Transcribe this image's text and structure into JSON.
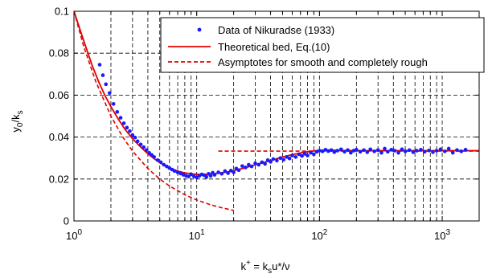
{
  "chart_data": {
    "type": "scatter",
    "xscale": "log",
    "xlim": [
      1,
      2000
    ],
    "ylim": [
      0,
      0.1
    ],
    "grid": true,
    "legend_position": "top-right",
    "xlabel": {
      "main": "k",
      "sup": "+",
      "eq": " = k",
      "sub": "s",
      "rest": "u*/ν"
    },
    "ylabel": {
      "main": "y",
      "sub0": "0",
      "slash": "/k",
      "subs": "s"
    },
    "xticks": [
      {
        "value": 1,
        "base": "10",
        "exp": "0"
      },
      {
        "value": 10,
        "base": "10",
        "exp": "1"
      },
      {
        "value": 100,
        "base": "10",
        "exp": "2"
      },
      {
        "value": 1000,
        "base": "10",
        "exp": "3"
      }
    ],
    "yticks": [
      {
        "value": 0,
        "label": "0"
      },
      {
        "value": 0.02,
        "label": "0.02"
      },
      {
        "value": 0.04,
        "label": "0.04"
      },
      {
        "value": 0.06,
        "label": "0.06"
      },
      {
        "value": 0.08,
        "label": "0.08"
      },
      {
        "value": 0.1,
        "label": "0.1"
      }
    ],
    "series": [
      {
        "name": "Data of Nikuradse (1933)",
        "style": "dots",
        "color": "#1a1aff",
        "points": [
          [
            1.62,
            0.0745
          ],
          [
            1.72,
            0.0695
          ],
          [
            1.82,
            0.0652
          ],
          [
            1.95,
            0.061
          ],
          [
            2.1,
            0.0558
          ],
          [
            2.25,
            0.052
          ],
          [
            2.4,
            0.0492
          ],
          [
            2.55,
            0.0466
          ],
          [
            2.7,
            0.0445
          ],
          [
            2.85,
            0.0428
          ],
          [
            3.0,
            0.041
          ],
          [
            3.15,
            0.0398
          ],
          [
            3.3,
            0.038
          ],
          [
            3.5,
            0.0365
          ],
          [
            3.7,
            0.0352
          ],
          [
            3.9,
            0.0338
          ],
          [
            4.1,
            0.0325
          ],
          [
            4.3,
            0.0315
          ],
          [
            4.5,
            0.0305
          ],
          [
            4.8,
            0.029
          ],
          [
            5.1,
            0.028
          ],
          [
            5.4,
            0.0268
          ],
          [
            5.7,
            0.026
          ],
          [
            6.0,
            0.0252
          ],
          [
            6.3,
            0.0245
          ],
          [
            6.6,
            0.0238
          ],
          [
            7.0,
            0.0232
          ],
          [
            7.4,
            0.0226
          ],
          [
            7.8,
            0.022
          ],
          [
            8.2,
            0.0215
          ],
          [
            8.6,
            0.0212
          ],
          [
            9.0,
            0.0222
          ],
          [
            9.5,
            0.0212
          ],
          [
            10.0,
            0.0208
          ],
          [
            10.5,
            0.0215
          ],
          [
            11.0,
            0.0222
          ],
          [
            11.5,
            0.0218
          ],
          [
            12.0,
            0.021
          ],
          [
            12.5,
            0.0225
          ],
          [
            13.0,
            0.0215
          ],
          [
            13.5,
            0.023
          ],
          [
            14.0,
            0.022
          ],
          [
            15.0,
            0.0232
          ],
          [
            16.0,
            0.0225
          ],
          [
            17.0,
            0.0238
          ],
          [
            18.0,
            0.0228
          ],
          [
            19.0,
            0.024
          ],
          [
            20.0,
            0.0232
          ],
          [
            21.0,
            0.025
          ],
          [
            22.0,
            0.0242
          ],
          [
            23.5,
            0.0262
          ],
          [
            25.0,
            0.0255
          ],
          [
            26.5,
            0.0268
          ],
          [
            28.0,
            0.026
          ],
          [
            30.0,
            0.0275
          ],
          [
            32.0,
            0.0268
          ],
          [
            34.0,
            0.028
          ],
          [
            36.0,
            0.0272
          ],
          [
            38.0,
            0.029
          ],
          [
            40.0,
            0.0282
          ],
          [
            42.0,
            0.0295
          ],
          [
            45.0,
            0.0288
          ],
          [
            48.0,
            0.03
          ],
          [
            51.0,
            0.0292
          ],
          [
            54.0,
            0.0305
          ],
          [
            57.0,
            0.0298
          ],
          [
            60.0,
            0.0312
          ],
          [
            64.0,
            0.0305
          ],
          [
            68.0,
            0.0318
          ],
          [
            72.0,
            0.031
          ],
          [
            76.0,
            0.032
          ],
          [
            80.0,
            0.0312
          ],
          [
            85.0,
            0.0325
          ],
          [
            90.0,
            0.0318
          ],
          [
            95.0,
            0.033
          ],
          [
            100.0,
            0.0335
          ],
          [
            106.0,
            0.0332
          ],
          [
            112.0,
            0.034
          ],
          [
            118.0,
            0.0333
          ],
          [
            125.0,
            0.0338
          ],
          [
            132.0,
            0.0328
          ],
          [
            140.0,
            0.0335
          ],
          [
            150.0,
            0.0342
          ],
          [
            160.0,
            0.033
          ],
          [
            170.0,
            0.0338
          ],
          [
            180.0,
            0.0325
          ],
          [
            190.0,
            0.0335
          ],
          [
            200.0,
            0.034
          ],
          [
            215.0,
            0.033
          ],
          [
            230.0,
            0.0338
          ],
          [
            245.0,
            0.0328
          ],
          [
            260.0,
            0.0342
          ],
          [
            280.0,
            0.0332
          ],
          [
            300.0,
            0.0338
          ],
          [
            320.0,
            0.0325
          ],
          [
            340.0,
            0.0345
          ],
          [
            360.0,
            0.033
          ],
          [
            385.0,
            0.034
          ],
          [
            410.0,
            0.0335
          ],
          [
            440.0,
            0.0325
          ],
          [
            470.0,
            0.0342
          ],
          [
            500.0,
            0.0332
          ],
          [
            540.0,
            0.0338
          ],
          [
            580.0,
            0.0328
          ],
          [
            620.0,
            0.0335
          ],
          [
            670.0,
            0.034
          ],
          [
            720.0,
            0.033
          ],
          [
            780.0,
            0.0336
          ],
          [
            840.0,
            0.0328
          ],
          [
            900.0,
            0.0335
          ],
          [
            970.0,
            0.0342
          ],
          [
            1050.0,
            0.0332
          ],
          [
            1130.0,
            0.0345
          ],
          [
            1220.0,
            0.0325
          ],
          [
            1320.0,
            0.0338
          ],
          [
            1430.0,
            0.0332
          ],
          [
            1550.0,
            0.034
          ]
        ]
      },
      {
        "name": "Theoretical bed, Eq.(10)",
        "style": "solid",
        "color": "#e00000",
        "points": [
          [
            1.0,
            0.1
          ],
          [
            1.2,
            0.086
          ],
          [
            1.4,
            0.0745
          ],
          [
            1.6,
            0.066
          ],
          [
            1.8,
            0.0595
          ],
          [
            2.0,
            0.0545
          ],
          [
            2.3,
            0.0485
          ],
          [
            2.6,
            0.0438
          ],
          [
            3.0,
            0.0392
          ],
          [
            3.5,
            0.0352
          ],
          [
            4.0,
            0.032
          ],
          [
            4.5,
            0.0297
          ],
          [
            5.0,
            0.0278
          ],
          [
            6.0,
            0.0253
          ],
          [
            7.0,
            0.0238
          ],
          [
            8.0,
            0.0229
          ],
          [
            10.0,
            0.0222
          ],
          [
            12.0,
            0.0222
          ],
          [
            14.0,
            0.0225
          ],
          [
            17.0,
            0.0232
          ],
          [
            20.0,
            0.024
          ],
          [
            25.0,
            0.0254
          ],
          [
            30.0,
            0.0268
          ],
          [
            40.0,
            0.0288
          ],
          [
            50.0,
            0.0305
          ],
          [
            60.0,
            0.0316
          ],
          [
            70.0,
            0.0324
          ],
          [
            80.0,
            0.033
          ],
          [
            90.0,
            0.0334
          ],
          [
            100.0,
            0.0337
          ],
          [
            120.0,
            0.0338
          ],
          [
            150.0,
            0.0336
          ],
          [
            200.0,
            0.0335
          ],
          [
            300.0,
            0.0335
          ],
          [
            500.0,
            0.0335
          ],
          [
            1000.0,
            0.0335
          ],
          [
            2000.0,
            0.0335
          ]
        ]
      },
      {
        "name": "Asymptotes for smooth and completely rough",
        "style": "dashed",
        "color": "#e00000",
        "segments": [
          [
            [
              1.0,
              0.1
            ],
            [
              1.2,
              0.0833
            ],
            [
              1.5,
              0.0667
            ],
            [
              2.0,
              0.05
            ],
            [
              2.5,
              0.04
            ],
            [
              3.0,
              0.0333
            ],
            [
              4.0,
              0.025
            ],
            [
              5.0,
              0.02
            ],
            [
              6.0,
              0.0167
            ],
            [
              8.0,
              0.0125
            ],
            [
              10.0,
              0.01
            ],
            [
              13.0,
              0.0077
            ],
            [
              16.0,
              0.0063
            ],
            [
              20.0,
              0.005
            ]
          ],
          [
            [
              15.0,
              0.0333
            ],
            [
              2000.0,
              0.0333
            ]
          ]
        ]
      }
    ]
  }
}
